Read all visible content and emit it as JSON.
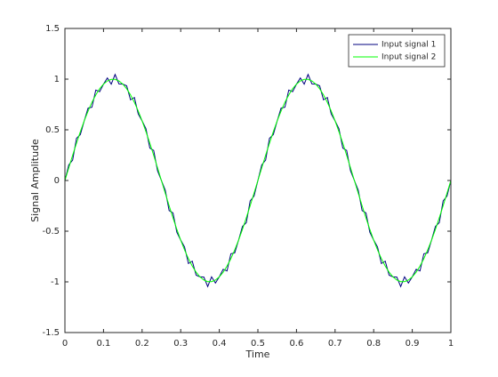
{
  "chart_data": {
    "type": "line",
    "xlabel": "Time",
    "ylabel": "Signal Amplitude",
    "x": [
      0,
      0.01,
      0.02,
      0.03,
      0.04,
      0.05,
      0.06,
      0.07,
      0.08,
      0.09,
      0.1,
      0.11,
      0.12,
      0.13,
      0.14,
      0.15,
      0.16,
      0.17,
      0.18,
      0.19,
      0.2,
      0.21,
      0.22,
      0.23,
      0.24,
      0.25,
      0.26,
      0.27,
      0.28,
      0.29,
      0.3,
      0.31,
      0.32,
      0.33,
      0.34,
      0.35,
      0.36,
      0.37,
      0.38,
      0.39,
      0.4,
      0.41,
      0.42,
      0.43,
      0.44,
      0.45,
      0.46,
      0.47,
      0.48,
      0.49,
      0.5,
      0.51,
      0.52,
      0.53,
      0.54,
      0.55,
      0.56,
      0.57,
      0.58,
      0.59,
      0.6,
      0.61,
      0.62,
      0.63,
      0.64,
      0.65,
      0.66,
      0.67,
      0.68,
      0.69,
      0.7,
      0.71,
      0.72,
      0.73,
      0.74,
      0.75,
      0.76,
      0.77,
      0.78,
      0.79,
      0.8,
      0.81,
      0.82,
      0.83,
      0.84,
      0.85,
      0.86,
      0.87,
      0.88,
      0.89,
      0.9,
      0.91,
      0.92,
      0.93,
      0.94,
      0.95,
      0.96,
      0.97,
      0.98,
      0.99,
      1
    ],
    "series": [
      {
        "name": "Input signal 1",
        "color": "#00007f",
        "values": [
          0,
          0.154,
          0.201,
          0.416,
          0.453,
          0.588,
          0.714,
          0.723,
          0.892,
          0.876,
          0.951,
          1.011,
          0.95,
          1.046,
          0.953,
          0.951,
          0.934,
          0.796,
          0.819,
          0.656,
          0.588,
          0.511,
          0.32,
          0.297,
          0.096,
          0,
          -0.096,
          -0.297,
          -0.32,
          -0.511,
          -0.588,
          -0.656,
          -0.819,
          -0.796,
          -0.934,
          -0.951,
          -0.953,
          -1.046,
          -0.95,
          -1.011,
          -0.951,
          -0.876,
          -0.892,
          -0.723,
          -0.714,
          -0.588,
          -0.453,
          -0.416,
          -0.201,
          -0.154,
          0,
          0.154,
          0.201,
          0.416,
          0.453,
          0.588,
          0.714,
          0.723,
          0.892,
          0.876,
          0.951,
          1.011,
          0.95,
          1.046,
          0.953,
          0.951,
          0.934,
          0.796,
          0.819,
          0.656,
          0.588,
          0.511,
          0.32,
          0.297,
          0.096,
          0,
          -0.096,
          -0.297,
          -0.32,
          -0.511,
          -0.588,
          -0.656,
          -0.819,
          -0.796,
          -0.934,
          -0.951,
          -0.953,
          -1.046,
          -0.95,
          -1.011,
          -0.951,
          -0.876,
          -0.892,
          -0.723,
          -0.714,
          -0.588,
          -0.453,
          -0.416,
          -0.201,
          -0.154,
          0
        ]
      },
      {
        "name": "Input signal 2",
        "color": "#00ff00",
        "values": [
          0,
          0.125,
          0.249,
          0.368,
          0.482,
          0.588,
          0.685,
          0.771,
          0.844,
          0.905,
          0.951,
          0.982,
          0.998,
          0.998,
          0.982,
          0.951,
          0.905,
          0.844,
          0.771,
          0.685,
          0.588,
          0.482,
          0.368,
          0.249,
          0.125,
          0,
          -0.125,
          -0.249,
          -0.368,
          -0.482,
          -0.588,
          -0.685,
          -0.771,
          -0.844,
          -0.905,
          -0.951,
          -0.982,
          -0.998,
          -0.998,
          -0.982,
          -0.951,
          -0.905,
          -0.844,
          -0.771,
          -0.685,
          -0.588,
          -0.482,
          -0.368,
          -0.249,
          -0.125,
          0,
          0.125,
          0.249,
          0.368,
          0.482,
          0.588,
          0.685,
          0.771,
          0.844,
          0.905,
          0.951,
          0.982,
          0.998,
          0.998,
          0.982,
          0.951,
          0.905,
          0.844,
          0.771,
          0.685,
          0.588,
          0.482,
          0.368,
          0.249,
          0.125,
          0,
          -0.125,
          -0.249,
          -0.368,
          -0.482,
          -0.588,
          -0.685,
          -0.771,
          -0.844,
          -0.905,
          -0.951,
          -0.982,
          -0.998,
          -0.998,
          -0.982,
          -0.951,
          -0.905,
          -0.844,
          -0.771,
          -0.685,
          -0.588,
          -0.482,
          -0.368,
          -0.249,
          -0.125,
          0
        ]
      }
    ],
    "xlim": [
      0,
      1
    ],
    "xticks": [
      0,
      0.1,
      0.2,
      0.3,
      0.4,
      0.5,
      0.6,
      0.7,
      0.8,
      0.9,
      1
    ],
    "ylim": [
      -1.5,
      1.5
    ],
    "yticks": [
      -1.5,
      -1,
      -0.5,
      0,
      0.5,
      1,
      1.5
    ],
    "grid": false,
    "legend": "upper-right"
  }
}
